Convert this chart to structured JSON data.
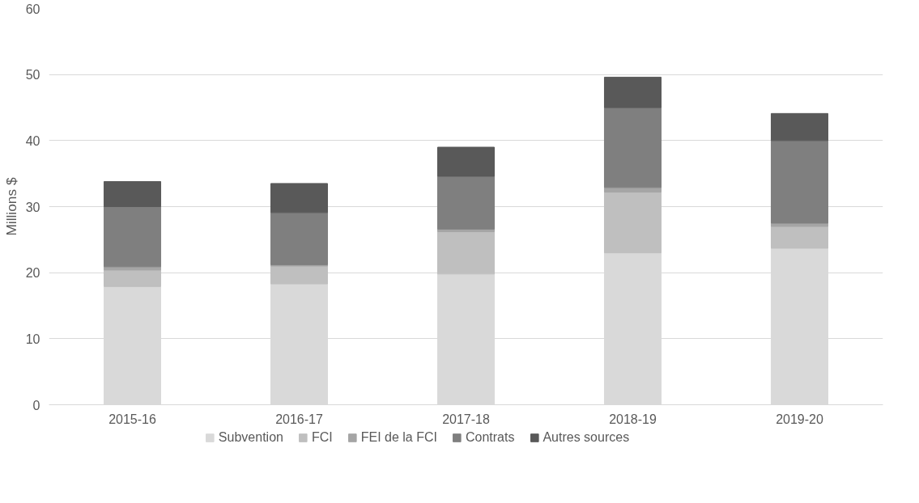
{
  "chart_data": {
    "type": "bar",
    "stacked": true,
    "ylabel": "Millions $",
    "categories": [
      "2015-16",
      "2016-17",
      "2017-18",
      "2018-19",
      "2019-20"
    ],
    "series": [
      {
        "name": "Subvention",
        "color": "#d9d9d9",
        "values": [
          17.9,
          18.3,
          19.8,
          23.0,
          23.7
        ]
      },
      {
        "name": "FCI",
        "color": "#bfbfbf",
        "values": [
          2.5,
          2.7,
          6.4,
          9.2,
          3.3
        ]
      },
      {
        "name": "FEI de la FCI",
        "color": "#a5a5a5",
        "values": [
          0.5,
          0.2,
          0.4,
          0.7,
          0.5
        ]
      },
      {
        "name": "Contrats",
        "color": "#7f7f7f",
        "values": [
          9.1,
          7.9,
          8.0,
          12.1,
          12.5
        ]
      },
      {
        "name": "Autres sources",
        "color": "#595959",
        "values": [
          3.8,
          4.4,
          4.4,
          4.6,
          4.1
        ]
      }
    ],
    "ylim": [
      0,
      60
    ],
    "yticks": [
      0,
      10,
      20,
      30,
      40,
      50,
      60
    ],
    "grid": "y",
    "legend": "bottom"
  }
}
